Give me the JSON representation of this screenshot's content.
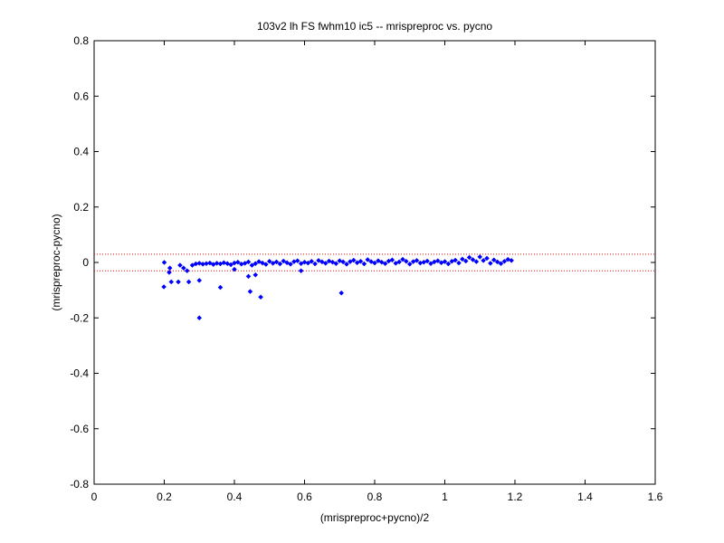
{
  "chart_data": {
    "type": "scatter",
    "title": "103v2 lh FS fwhm10 ic5 -- mrispreproc vs. pycno",
    "xlabel": "(mrispreproc+pycno)/2",
    "ylabel": "(mrispreproc-pycno)",
    "color": "#0000ff",
    "marker": "diamond",
    "xlim": [
      0,
      1.6
    ],
    "ylim": [
      -0.8,
      0.8
    ],
    "xticks": [
      0,
      0.2,
      0.4,
      0.6,
      0.8,
      1,
      1.2,
      1.4,
      1.6
    ],
    "yticks": [
      -0.8,
      -0.6,
      -0.4,
      -0.2,
      0,
      0.2,
      0.4,
      0.6,
      0.8
    ],
    "grid": false,
    "hlines": [
      0.03,
      -0.03
    ],
    "hline_color": "#ff0000",
    "hline_style": "dotted",
    "x": [
      0.28,
      0.29,
      0.3,
      0.31,
      0.32,
      0.33,
      0.34,
      0.35,
      0.36,
      0.37,
      0.38,
      0.39,
      0.4,
      0.41,
      0.42,
      0.43,
      0.44,
      0.45,
      0.46,
      0.47,
      0.48,
      0.49,
      0.5,
      0.51,
      0.52,
      0.53,
      0.54,
      0.55,
      0.56,
      0.57,
      0.58,
      0.59,
      0.6,
      0.61,
      0.62,
      0.63,
      0.64,
      0.65,
      0.66,
      0.67,
      0.68,
      0.69,
      0.7,
      0.71,
      0.72,
      0.73,
      0.74,
      0.75,
      0.76,
      0.77,
      0.78,
      0.79,
      0.8,
      0.81,
      0.82,
      0.83,
      0.84,
      0.85,
      0.86,
      0.87,
      0.88,
      0.89,
      0.9,
      0.91,
      0.92,
      0.93,
      0.94,
      0.95,
      0.96,
      0.97,
      0.98,
      0.99,
      1.0,
      1.01,
      1.02,
      1.03,
      1.04,
      1.05,
      1.06,
      1.07,
      1.08,
      1.09,
      1.1,
      1.11,
      1.12,
      1.13,
      1.14,
      1.15,
      1.16,
      1.17,
      1.18,
      1.19,
      0.199,
      0.2,
      0.214,
      0.216,
      0.22,
      0.24,
      0.245,
      0.255,
      0.265,
      0.27,
      0.3,
      0.3,
      0.36,
      0.4,
      0.44,
      0.445,
      0.46,
      0.475,
      0.705,
      0.59
    ],
    "values": [
      -0.01,
      -0.005,
      -0.003,
      -0.006,
      -0.004,
      -0.002,
      -0.007,
      -0.003,
      -0.005,
      -0.001,
      -0.004,
      -0.008,
      -0.002,
      0.001,
      -0.006,
      -0.003,
      0.002,
      -0.01,
      -0.004,
      0.003,
      -0.002,
      -0.007,
      0.004,
      -0.003,
      0.002,
      -0.005,
      0.005,
      -0.001,
      -0.006,
      0.003,
      0.006,
      -0.004,
      0.001,
      -0.002,
      0.004,
      -0.005,
      0.007,
      0.002,
      -0.003,
      0.005,
      0.001,
      -0.004,
      0.006,
      0.002,
      -0.006,
      0.003,
      0.008,
      -0.001,
      0.004,
      -0.005,
      0.01,
      0.003,
      -0.002,
      0.006,
      0.001,
      -0.004,
      0.005,
      0.009,
      -0.003,
      0.002,
      0.011,
      0.004,
      -0.006,
      0.003,
      0.007,
      -0.002,
      0.001,
      0.005,
      -0.004,
      0.002,
      0.006,
      -0.001,
      0.003,
      -0.005,
      0.004,
      0.008,
      -0.002,
      0.012,
      0.005,
      0.018,
      0.01,
      0.003,
      0.02,
      0.007,
      0.015,
      -0.003,
      0.009,
      0.002,
      -0.004,
      0.004,
      0.011,
      0.007,
      -0.088,
      0,
      -0.036,
      -0.02,
      -0.07,
      -0.07,
      -0.01,
      -0.02,
      -0.03,
      -0.07,
      -0.065,
      -0.2,
      -0.09,
      -0.025,
      -0.05,
      -0.105,
      -0.045,
      -0.125,
      -0.11,
      -0.03
    ]
  }
}
